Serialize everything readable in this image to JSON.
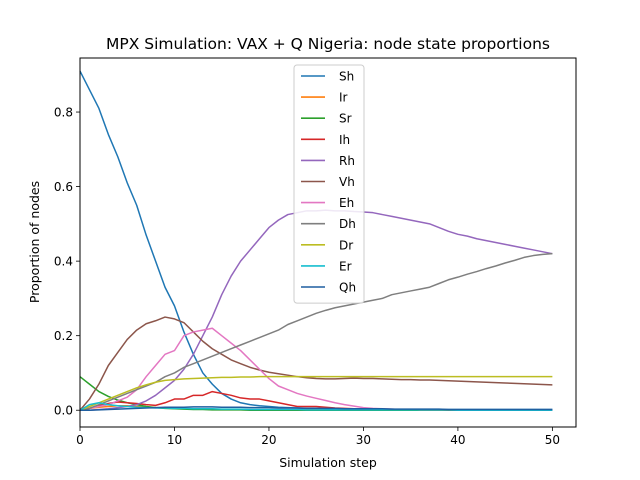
{
  "chart_data": {
    "type": "line",
    "title": "MPX Simulation: VAX + Q Nigeria: node state proportions",
    "xlabel": "Simulation step",
    "ylabel": "Proportion of nodes",
    "xlim": [
      0,
      52.5
    ],
    "ylim": [
      -0.045,
      0.945
    ],
    "xticks": [
      0,
      10,
      20,
      30,
      40,
      50
    ],
    "yticks": [
      0.0,
      0.2,
      0.4,
      0.6,
      0.8
    ],
    "xtick_labels": [
      "0",
      "10",
      "20",
      "30",
      "40",
      "50"
    ],
    "ytick_labels": [
      "0.0",
      "0.2",
      "0.4",
      "0.6",
      "0.8"
    ],
    "grid": false,
    "legend_position": "top-center",
    "x": [
      0,
      1,
      2,
      3,
      4,
      5,
      6,
      7,
      8,
      9,
      10,
      11,
      12,
      13,
      14,
      15,
      16,
      17,
      18,
      19,
      20,
      21,
      22,
      23,
      24,
      25,
      26,
      27,
      28,
      29,
      30,
      31,
      32,
      33,
      34,
      35,
      36,
      37,
      38,
      39,
      40,
      41,
      42,
      43,
      44,
      45,
      46,
      47,
      48,
      49,
      50
    ],
    "series": [
      {
        "name": "Sh",
        "color": "#1f77b4",
        "values": [
          0.91,
          0.86,
          0.81,
          0.74,
          0.68,
          0.61,
          0.55,
          0.47,
          0.4,
          0.33,
          0.28,
          0.21,
          0.15,
          0.1,
          0.07,
          0.045,
          0.03,
          0.02,
          0.015,
          0.012,
          0.01,
          0.008,
          0.007,
          0.006,
          0.005,
          0.005,
          0.004,
          0.004,
          0.004,
          0.003,
          0.003,
          0.003,
          0.003,
          0.003,
          0.002,
          0.002,
          0.002,
          0.002,
          0.002,
          0.002,
          0.002,
          0.002,
          0.002,
          0.002,
          0.002,
          0.002,
          0.002,
          0.002,
          0.002,
          0.002,
          0.002
        ]
      },
      {
        "name": "Ir",
        "color": "#ff7f0e",
        "values": [
          0.0,
          0.005,
          0.008,
          0.01,
          0.012,
          0.012,
          0.01,
          0.008,
          0.007,
          0.006,
          0.005,
          0.004,
          0.004,
          0.003,
          0.003,
          0.002,
          0.002,
          0.002,
          0.001,
          0.001,
          0.001,
          0.001,
          0.001,
          0.001,
          0.001,
          0.001,
          0.0,
          0.0,
          0.0,
          0.0,
          0.0,
          0.0,
          0.0,
          0.0,
          0.0,
          0.0,
          0.0,
          0.0,
          0.0,
          0.0,
          0.0,
          0.0,
          0.0,
          0.0,
          0.0,
          0.0,
          0.0,
          0.0,
          0.0,
          0.0,
          0.0
        ]
      },
      {
        "name": "Sr",
        "color": "#2ca02c",
        "values": [
          0.09,
          0.07,
          0.05,
          0.037,
          0.027,
          0.02,
          0.015,
          0.01,
          0.007,
          0.005,
          0.004,
          0.003,
          0.002,
          0.002,
          0.001,
          0.001,
          0.001,
          0.001,
          0.0,
          0.0,
          0.0,
          0.0,
          0.0,
          0.0,
          0.0,
          0.0,
          0.0,
          0.0,
          0.0,
          0.0,
          0.0,
          0.0,
          0.0,
          0.0,
          0.0,
          0.0,
          0.0,
          0.0,
          0.0,
          0.0,
          0.0,
          0.0,
          0.0,
          0.0,
          0.0,
          0.0,
          0.0,
          0.0,
          0.0,
          0.0,
          0.0
        ]
      },
      {
        "name": "Ih",
        "color": "#d62728",
        "values": [
          0.0,
          0.005,
          0.012,
          0.018,
          0.022,
          0.02,
          0.018,
          0.015,
          0.013,
          0.02,
          0.03,
          0.03,
          0.04,
          0.04,
          0.05,
          0.045,
          0.04,
          0.033,
          0.03,
          0.03,
          0.025,
          0.02,
          0.015,
          0.01,
          0.01,
          0.01,
          0.008,
          0.006,
          0.005,
          0.004,
          0.003,
          0.003,
          0.002,
          0.002,
          0.002,
          0.002,
          0.001,
          0.001,
          0.001,
          0.001,
          0.001,
          0.001,
          0.001,
          0.001,
          0.001,
          0.001,
          0.001,
          0.0,
          0.0,
          0.0,
          0.0
        ]
      },
      {
        "name": "Rh",
        "color": "#9467bd",
        "values": [
          0.0,
          0.0,
          0.002,
          0.004,
          0.007,
          0.01,
          0.015,
          0.025,
          0.04,
          0.06,
          0.08,
          0.11,
          0.15,
          0.2,
          0.25,
          0.31,
          0.36,
          0.4,
          0.43,
          0.46,
          0.49,
          0.51,
          0.525,
          0.53,
          0.535,
          0.535,
          0.537,
          0.535,
          0.535,
          0.533,
          0.532,
          0.53,
          0.525,
          0.52,
          0.515,
          0.51,
          0.505,
          0.5,
          0.49,
          0.48,
          0.472,
          0.467,
          0.46,
          0.455,
          0.45,
          0.445,
          0.44,
          0.435,
          0.43,
          0.425,
          0.42
        ]
      },
      {
        "name": "Vh",
        "color": "#8c564b",
        "values": [
          0.0,
          0.03,
          0.07,
          0.12,
          0.155,
          0.19,
          0.215,
          0.232,
          0.24,
          0.25,
          0.245,
          0.235,
          0.21,
          0.185,
          0.165,
          0.15,
          0.135,
          0.125,
          0.115,
          0.108,
          0.102,
          0.098,
          0.094,
          0.09,
          0.087,
          0.085,
          0.084,
          0.084,
          0.085,
          0.086,
          0.085,
          0.085,
          0.084,
          0.083,
          0.082,
          0.082,
          0.081,
          0.081,
          0.08,
          0.079,
          0.078,
          0.077,
          0.076,
          0.075,
          0.074,
          0.073,
          0.072,
          0.071,
          0.07,
          0.069,
          0.068
        ]
      },
      {
        "name": "Eh",
        "color": "#e377c2",
        "values": [
          0.0,
          0.005,
          0.01,
          0.015,
          0.025,
          0.035,
          0.055,
          0.09,
          0.12,
          0.15,
          0.16,
          0.2,
          0.21,
          0.215,
          0.22,
          0.2,
          0.18,
          0.16,
          0.135,
          0.11,
          0.085,
          0.065,
          0.055,
          0.045,
          0.038,
          0.032,
          0.026,
          0.02,
          0.015,
          0.011,
          0.007,
          0.005,
          0.004,
          0.003,
          0.002,
          0.002,
          0.001,
          0.001,
          0.001,
          0.001,
          0.001,
          0.001,
          0.0,
          0.0,
          0.0,
          0.0,
          0.0,
          0.0,
          0.0,
          0.0,
          0.0
        ]
      },
      {
        "name": "Dh",
        "color": "#7f7f7f",
        "values": [
          0.0,
          0.005,
          0.015,
          0.025,
          0.035,
          0.045,
          0.055,
          0.065,
          0.075,
          0.09,
          0.1,
          0.115,
          0.125,
          0.135,
          0.145,
          0.155,
          0.165,
          0.175,
          0.185,
          0.195,
          0.205,
          0.215,
          0.23,
          0.24,
          0.25,
          0.26,
          0.268,
          0.275,
          0.28,
          0.285,
          0.29,
          0.295,
          0.3,
          0.31,
          0.315,
          0.32,
          0.325,
          0.33,
          0.34,
          0.35,
          0.357,
          0.365,
          0.372,
          0.38,
          0.387,
          0.395,
          0.402,
          0.41,
          0.415,
          0.418,
          0.42
        ]
      },
      {
        "name": "Dr",
        "color": "#bcbd22",
        "values": [
          0.0,
          0.01,
          0.02,
          0.03,
          0.04,
          0.05,
          0.06,
          0.068,
          0.075,
          0.08,
          0.082,
          0.084,
          0.085,
          0.086,
          0.087,
          0.088,
          0.088,
          0.089,
          0.089,
          0.09,
          0.09,
          0.09,
          0.09,
          0.09,
          0.09,
          0.09,
          0.09,
          0.09,
          0.09,
          0.09,
          0.09,
          0.09,
          0.09,
          0.09,
          0.09,
          0.09,
          0.09,
          0.09,
          0.09,
          0.09,
          0.09,
          0.09,
          0.09,
          0.09,
          0.09,
          0.09,
          0.09,
          0.09,
          0.09,
          0.09,
          0.09
        ]
      },
      {
        "name": "Er",
        "color": "#17becf",
        "values": [
          0.0,
          0.015,
          0.02,
          0.015,
          0.012,
          0.01,
          0.008,
          0.007,
          0.006,
          0.006,
          0.005,
          0.005,
          0.004,
          0.004,
          0.004,
          0.003,
          0.003,
          0.003,
          0.002,
          0.002,
          0.002,
          0.002,
          0.002,
          0.002,
          0.001,
          0.001,
          0.001,
          0.001,
          0.001,
          0.001,
          0.001,
          0.001,
          0.001,
          0.001,
          0.001,
          0.001,
          0.001,
          0.001,
          0.001,
          0.001,
          0.0,
          0.0,
          0.0,
          0.0,
          0.0,
          0.0,
          0.0,
          0.0,
          0.0,
          0.0,
          0.0
        ]
      },
      {
        "name": "Qh",
        "color": "#1f5fa0",
        "values": [
          0.0,
          0.0,
          0.001,
          0.002,
          0.003,
          0.004,
          0.005,
          0.006,
          0.007,
          0.008,
          0.008,
          0.008,
          0.009,
          0.009,
          0.009,
          0.008,
          0.008,
          0.008,
          0.007,
          0.007,
          0.007,
          0.006,
          0.006,
          0.006,
          0.005,
          0.005,
          0.005,
          0.005,
          0.004,
          0.004,
          0.004,
          0.004,
          0.004,
          0.003,
          0.003,
          0.003,
          0.003,
          0.003,
          0.003,
          0.002,
          0.002,
          0.002,
          0.002,
          0.002,
          0.002,
          0.002,
          0.002,
          0.002,
          0.002,
          0.002,
          0.002
        ]
      }
    ]
  }
}
